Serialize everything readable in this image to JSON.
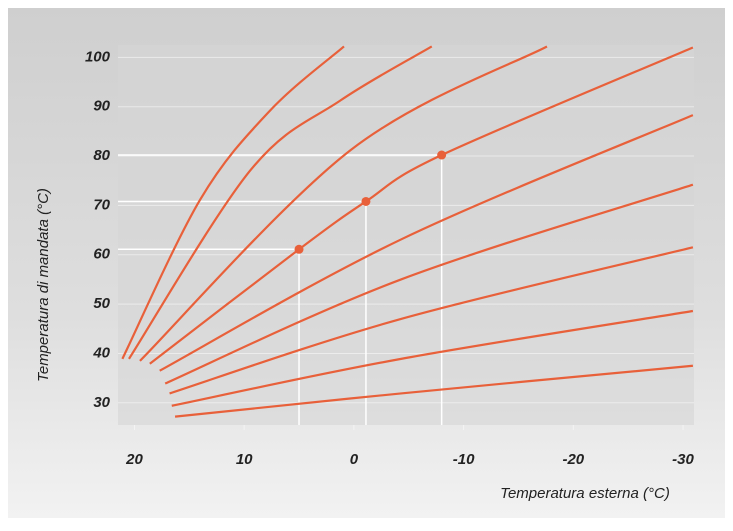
{
  "chart_data": {
    "type": "line",
    "xlabel": "Temperatura esterna (°C)",
    "ylabel": "Temperatura di mandata (°C)",
    "xlim": [
      21.5,
      -31
    ],
    "ylim": [
      25.5,
      102.5
    ],
    "xticks": [
      20,
      10,
      0,
      -10,
      -20,
      -30
    ],
    "yticks": [
      30,
      40,
      50,
      60,
      70,
      80,
      90,
      100
    ],
    "color": "#e8603a",
    "series": [
      {
        "x": [
          21.1,
          14.0,
          7.6,
          0.9
        ],
        "values": [
          38.9,
          71.2,
          89.3,
          102.2
        ]
      },
      {
        "x": [
          20.5,
          9.4,
          1.2,
          -7.1
        ],
        "values": [
          38.9,
          77.2,
          91.3,
          102.2
        ]
      },
      {
        "x": [
          19.5,
          0.3,
          -17.6
        ],
        "values": [
          38.5,
          81.2,
          102.2
        ]
      },
      {
        "x": [
          18.6,
          5.0,
          -1.1,
          -8.0,
          -30.9
        ],
        "values": [
          37.9,
          61.1,
          70.8,
          80.2,
          102.0
        ]
      },
      {
        "x": [
          17.7,
          -4.3,
          -30.9
        ],
        "values": [
          36.5,
          63.1,
          88.3
        ]
      },
      {
        "x": [
          17.2,
          -4.3,
          -30.9
        ],
        "values": [
          33.9,
          55.0,
          74.2
        ]
      },
      {
        "x": [
          16.8,
          -4.3,
          -30.9
        ],
        "values": [
          31.9,
          47.0,
          61.5
        ]
      },
      {
        "x": [
          16.6,
          -4.3,
          -30.9
        ],
        "values": [
          29.4,
          38.9,
          48.6
        ]
      },
      {
        "x": [
          16.3,
          -4.3,
          -30.9
        ],
        "values": [
          27.2,
          31.9,
          37.5
        ]
      }
    ],
    "markers": {
      "x": [
        5.0,
        -1.1,
        -8.0
      ],
      "values": [
        61.1,
        70.8,
        80.2
      ]
    }
  }
}
